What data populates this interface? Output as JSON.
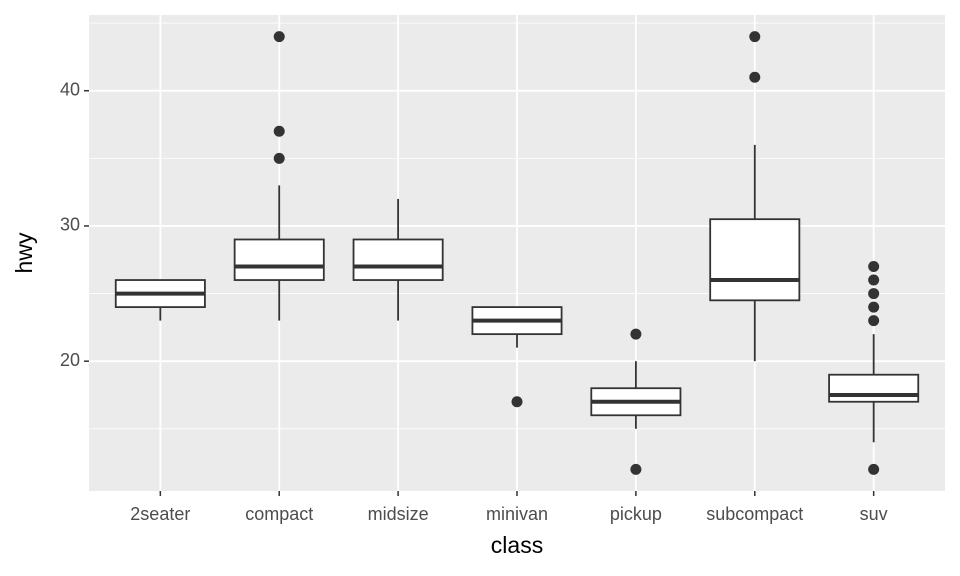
{
  "chart_data": {
    "type": "box",
    "x_label": "class",
    "y_label": "hwy",
    "categories": [
      "2seater",
      "compact",
      "midsize",
      "minivan",
      "pickup",
      "subcompact",
      "suv"
    ],
    "boxes": [
      {
        "min": 23,
        "q1": 24,
        "median": 25,
        "q3": 26,
        "max": 26,
        "outliers": []
      },
      {
        "min": 23,
        "q1": 26,
        "median": 27,
        "q3": 29,
        "max": 33,
        "outliers": [
          35,
          37,
          44
        ]
      },
      {
        "min": 23,
        "q1": 26,
        "median": 27,
        "q3": 29,
        "max": 32,
        "outliers": []
      },
      {
        "min": 21,
        "q1": 22,
        "median": 23,
        "q3": 24,
        "max": 24,
        "outliers": [
          17
        ]
      },
      {
        "min": 15,
        "q1": 16,
        "median": 17,
        "q3": 18,
        "max": 20,
        "outliers": [
          12,
          22
        ]
      },
      {
        "min": 20,
        "q1": 24.5,
        "median": 26,
        "q3": 30.5,
        "max": 36,
        "outliers": [
          41,
          44
        ]
      },
      {
        "min": 14,
        "q1": 17,
        "median": 17.5,
        "q3": 19,
        "max": 22,
        "outliers": [
          12,
          23,
          24,
          25,
          26,
          27
        ]
      }
    ],
    "ylim": [
      10.4,
      45.6
    ],
    "yticks": [
      20,
      30,
      40
    ],
    "yminor": [
      15,
      25,
      35,
      45
    ],
    "grid": true,
    "panel_color": "#ebebeb",
    "box_fill": "#ffffff",
    "line_color": "#333333"
  }
}
